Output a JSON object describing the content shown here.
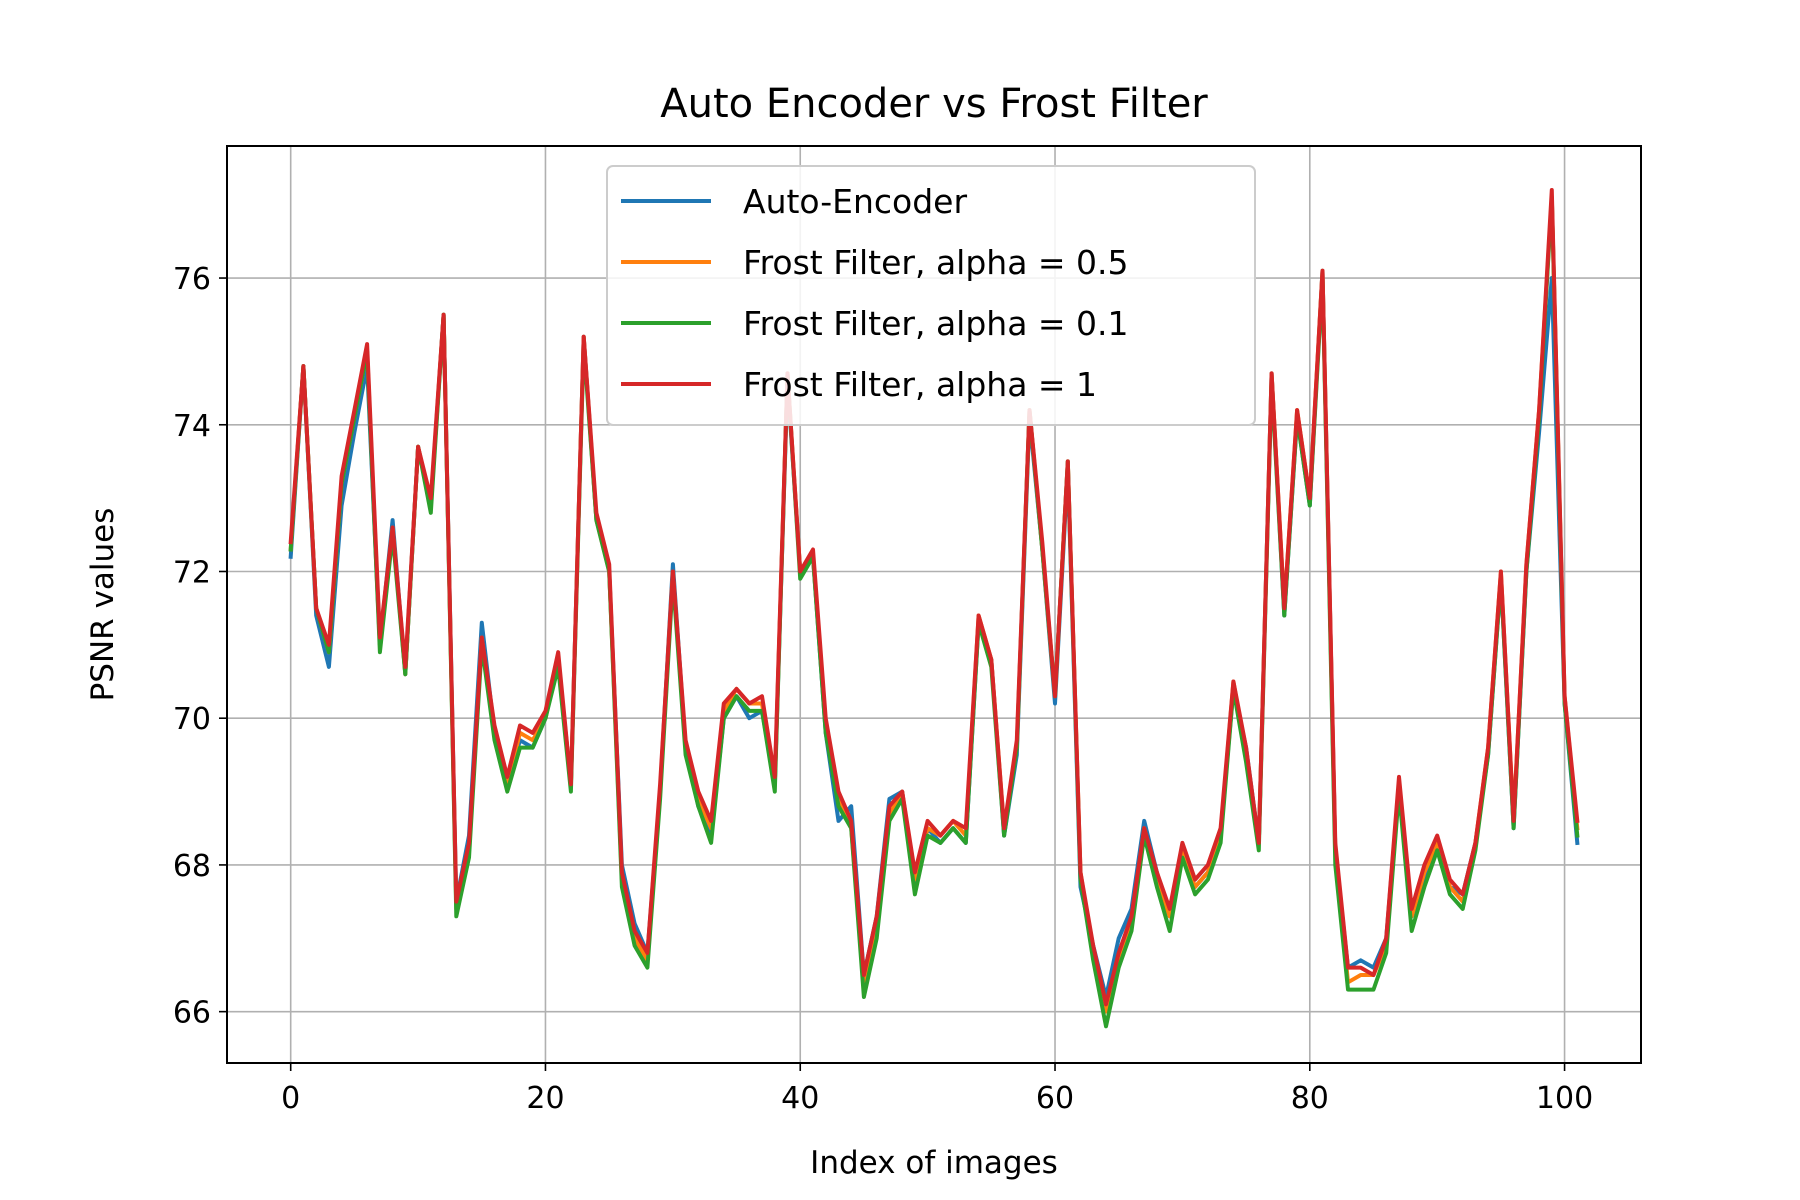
{
  "chart_data": {
    "type": "line",
    "title": "Auto Encoder vs Frost Filter",
    "xlabel": "Index of images",
    "ylabel": "PSNR values",
    "xlim": [
      -5,
      106
    ],
    "ylim": [
      65.3,
      77.8
    ],
    "xticks": [
      0,
      20,
      40,
      60,
      80,
      100
    ],
    "yticks": [
      66,
      68,
      70,
      72,
      74,
      76
    ],
    "grid": true,
    "legend_position": "upper center",
    "x": [
      0,
      1,
      2,
      3,
      4,
      5,
      6,
      7,
      8,
      9,
      10,
      11,
      12,
      13,
      14,
      15,
      16,
      17,
      18,
      19,
      20,
      21,
      22,
      23,
      24,
      25,
      26,
      27,
      28,
      29,
      30,
      31,
      32,
      33,
      34,
      35,
      36,
      37,
      38,
      39,
      40,
      41,
      42,
      43,
      44,
      45,
      46,
      47,
      48,
      49,
      50,
      51,
      52,
      53,
      54,
      55,
      56,
      57,
      58,
      59,
      60,
      61,
      62,
      63,
      64,
      65,
      66,
      67,
      68,
      69,
      70,
      71,
      72,
      73,
      74,
      75,
      76,
      77,
      78,
      79,
      80,
      81,
      82,
      83,
      84,
      85,
      86,
      87,
      88,
      89,
      90,
      91,
      92,
      93,
      94,
      95,
      96,
      97,
      98,
      99,
      100,
      101
    ],
    "series": [
      {
        "name": "Auto-Encoder",
        "color": "#1f77b4",
        "values": [
          72.2,
          74.8,
          71.4,
          70.7,
          72.9,
          73.9,
          74.8,
          71.0,
          72.7,
          70.6,
          73.7,
          72.9,
          75.5,
          67.5,
          68.4,
          71.3,
          69.8,
          69.1,
          69.7,
          69.6,
          70.0,
          70.8,
          69.1,
          75.2,
          72.7,
          72.0,
          68.0,
          67.2,
          66.8,
          69.0,
          72.1,
          69.6,
          68.8,
          68.4,
          70.0,
          70.3,
          70.0,
          70.1,
          69.1,
          74.6,
          72.0,
          72.2,
          69.8,
          68.6,
          68.8,
          66.5,
          67.3,
          68.9,
          69.0,
          67.7,
          68.5,
          68.3,
          68.5,
          68.3,
          71.3,
          70.8,
          68.4,
          69.5,
          74.1,
          72.3,
          70.2,
          73.4,
          67.7,
          66.9,
          66.2,
          67.0,
          67.4,
          68.6,
          67.9,
          67.3,
          68.1,
          67.7,
          67.9,
          68.4,
          70.4,
          69.6,
          68.3,
          74.7,
          71.4,
          74.1,
          72.9,
          76.1,
          68.2,
          66.6,
          66.7,
          66.6,
          67.0,
          69.1,
          67.3,
          67.8,
          68.3,
          67.7,
          67.6,
          68.3,
          69.5,
          71.9,
          68.5,
          72.0,
          73.9,
          76.0,
          70.2,
          68.3
        ]
      },
      {
        "name": "Frost Filter, alpha = 0.5",
        "color": "#ff7f0e",
        "values": [
          72.3,
          74.8,
          71.5,
          70.9,
          73.2,
          74.1,
          75.0,
          71.0,
          72.6,
          70.6,
          73.7,
          72.9,
          75.5,
          67.4,
          68.2,
          71.1,
          69.8,
          69.1,
          69.8,
          69.7,
          70.0,
          70.8,
          69.1,
          75.2,
          72.7,
          72.0,
          67.8,
          67.0,
          66.7,
          69.0,
          72.0,
          69.6,
          68.9,
          68.5,
          70.1,
          70.4,
          70.2,
          70.2,
          69.1,
          74.7,
          72.0,
          72.2,
          69.9,
          68.9,
          68.5,
          66.4,
          67.2,
          68.7,
          69.0,
          67.8,
          68.5,
          68.4,
          68.6,
          68.4,
          71.4,
          70.8,
          68.5,
          69.6,
          74.2,
          72.3,
          70.3,
          73.5,
          67.9,
          66.8,
          66.0,
          66.7,
          67.2,
          68.5,
          67.8,
          67.3,
          68.2,
          67.7,
          67.9,
          68.4,
          70.5,
          69.5,
          68.3,
          74.7,
          71.5,
          74.2,
          73.0,
          76.1,
          68.2,
          66.4,
          66.5,
          66.5,
          66.9,
          69.1,
          67.3,
          67.9,
          68.3,
          67.7,
          67.5,
          68.3,
          69.6,
          72.0,
          68.6,
          72.1,
          74.2,
          77.1,
          70.3,
          68.5
        ]
      },
      {
        "name": "Frost Filter, alpha = 0.1",
        "color": "#2ca02c",
        "values": [
          72.3,
          74.8,
          71.5,
          70.9,
          73.2,
          74.1,
          75.0,
          70.9,
          72.5,
          70.6,
          73.7,
          72.8,
          75.5,
          67.3,
          68.1,
          71.0,
          69.7,
          69.0,
          69.6,
          69.6,
          70.0,
          70.7,
          69.0,
          75.1,
          72.7,
          72.0,
          67.7,
          66.9,
          66.6,
          68.9,
          71.9,
          69.5,
          68.8,
          68.3,
          70.0,
          70.3,
          70.1,
          70.1,
          69.0,
          74.7,
          71.9,
          72.2,
          69.8,
          68.8,
          68.5,
          66.2,
          67.0,
          68.6,
          68.9,
          67.6,
          68.4,
          68.3,
          68.5,
          68.3,
          71.3,
          70.7,
          68.4,
          69.6,
          74.2,
          72.3,
          70.3,
          73.5,
          67.8,
          66.7,
          65.8,
          66.6,
          67.1,
          68.4,
          67.7,
          67.1,
          68.1,
          67.6,
          67.8,
          68.3,
          70.4,
          69.4,
          68.2,
          74.6,
          71.4,
          74.1,
          72.9,
          76.0,
          68.0,
          66.3,
          66.3,
          66.3,
          66.8,
          69.0,
          67.1,
          67.7,
          68.2,
          67.6,
          67.4,
          68.2,
          69.5,
          71.9,
          68.5,
          72.0,
          74.1,
          77.1,
          70.2,
          68.4
        ]
      },
      {
        "name": "Frost Filter, alpha = 1",
        "color": "#d62728",
        "values": [
          72.4,
          74.8,
          71.5,
          71.0,
          73.3,
          74.2,
          75.1,
          71.1,
          72.6,
          70.7,
          73.7,
          73.0,
          75.5,
          67.5,
          68.3,
          71.1,
          69.9,
          69.2,
          69.9,
          69.8,
          70.1,
          70.9,
          69.1,
          75.2,
          72.8,
          72.1,
          67.9,
          67.1,
          66.8,
          69.1,
          72.0,
          69.7,
          69.0,
          68.6,
          70.2,
          70.4,
          70.2,
          70.3,
          69.2,
          74.7,
          72.0,
          72.3,
          70.0,
          69.0,
          68.6,
          66.5,
          67.3,
          68.8,
          69.0,
          67.9,
          68.6,
          68.4,
          68.6,
          68.5,
          71.4,
          70.8,
          68.5,
          69.7,
          74.2,
          72.4,
          70.3,
          73.5,
          67.9,
          66.9,
          66.1,
          66.8,
          67.3,
          68.5,
          67.9,
          67.4,
          68.3,
          67.8,
          68.0,
          68.5,
          70.5,
          69.6,
          68.3,
          74.7,
          71.5,
          74.2,
          73.0,
          76.1,
          68.3,
          66.6,
          66.6,
          66.5,
          67.0,
          69.2,
          67.4,
          68.0,
          68.4,
          67.8,
          67.6,
          68.3,
          69.6,
          72.0,
          68.6,
          72.1,
          74.2,
          77.2,
          70.3,
          68.6
        ]
      }
    ]
  }
}
